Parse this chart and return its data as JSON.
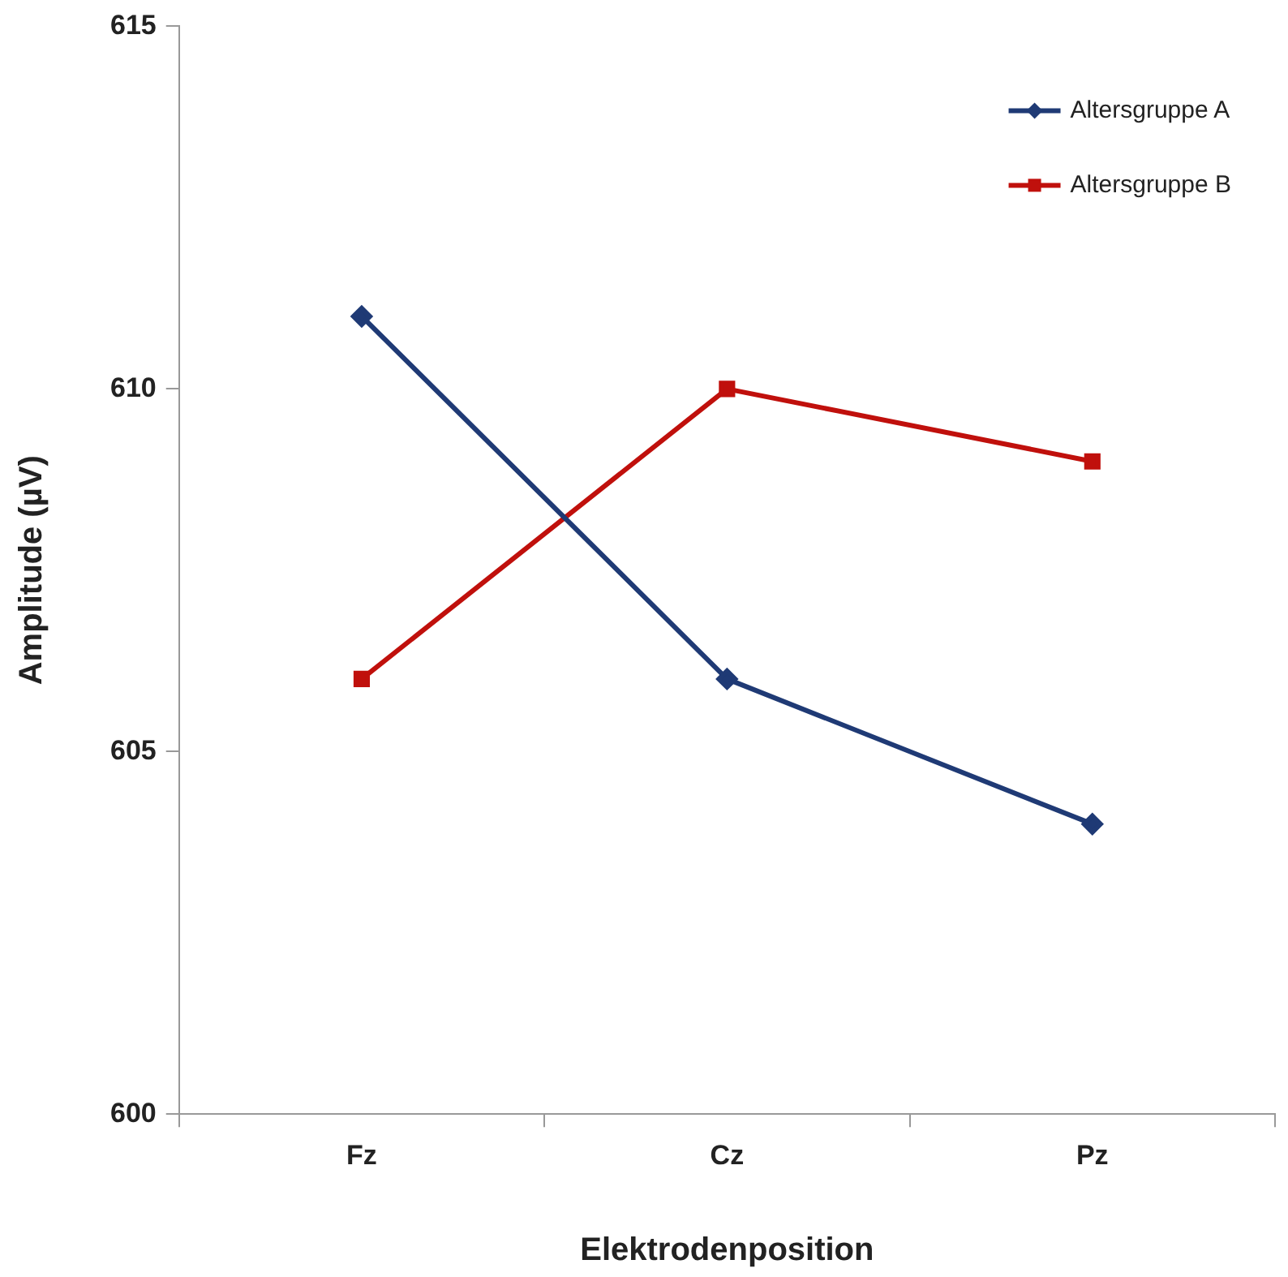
{
  "chart_data": {
    "type": "line",
    "xlabel": "Elektrodenposition",
    "ylabel": "Amplitude (µV)",
    "categories": [
      "Fz",
      "Cz",
      "Pz"
    ],
    "series": [
      {
        "name": "Altersgruppe A",
        "color": "#1f3a75",
        "marker": "diamond",
        "values": [
          611,
          606,
          604
        ]
      },
      {
        "name": "Altersgruppe B",
        "color": "#c0100c",
        "marker": "square",
        "values": [
          606,
          610,
          609
        ]
      }
    ],
    "ylim": [
      600,
      615
    ],
    "yticks": [
      600,
      605,
      610,
      615
    ],
    "grid": false,
    "legend": "top right",
    "line_style": "solid"
  }
}
